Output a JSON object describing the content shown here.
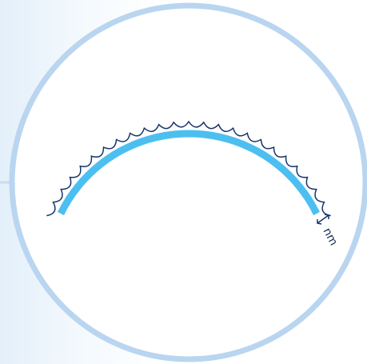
{
  "label": "nm"
}
